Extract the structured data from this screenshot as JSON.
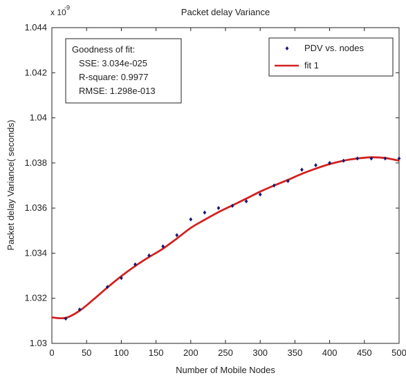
{
  "chart_data": {
    "type": "scatter",
    "title": "Packet delay Variance",
    "xlabel": "Number of Mobile Nodes",
    "ylabel": "Packet delay Variance( seconds)",
    "y_scale_label": "x 10",
    "y_scale_exponent": "-9",
    "xlim": [
      0,
      500
    ],
    "ylim": [
      1.03,
      1.044
    ],
    "x_ticks": [
      0,
      50,
      100,
      150,
      200,
      250,
      300,
      350,
      400,
      450,
      500
    ],
    "y_ticks": [
      1.03,
      1.032,
      1.034,
      1.036,
      1.038,
      1.04,
      1.042,
      1.044
    ],
    "y_tick_labels": [
      "1.03",
      "1.032",
      "1.034",
      "1.036",
      "1.038",
      "1.04",
      "1.042",
      "1.044"
    ],
    "grid": false,
    "legend_position": "top-right",
    "series": [
      {
        "name": "PDV vs. nodes",
        "kind": "scatter",
        "color": "#1a1a6e",
        "x": [
          20,
          40,
          80,
          100,
          120,
          140,
          160,
          180,
          200,
          220,
          240,
          260,
          280,
          300,
          320,
          340,
          360,
          380,
          400,
          420,
          440,
          460,
          480,
          500
        ],
        "y": [
          1.0311,
          1.0315,
          1.0325,
          1.0329,
          1.0335,
          1.0339,
          1.0343,
          1.0348,
          1.0355,
          1.0358,
          1.036,
          1.0361,
          1.0363,
          1.0366,
          1.037,
          1.0372,
          1.0377,
          1.0379,
          1.038,
          1.0381,
          1.0382,
          1.0382,
          1.0382,
          1.0382
        ]
      },
      {
        "name": "fit 1",
        "kind": "line",
        "color": "#d42020",
        "x": [
          0,
          20,
          40,
          60,
          80,
          100,
          120,
          140,
          160,
          180,
          200,
          220,
          240,
          260,
          280,
          300,
          320,
          340,
          360,
          380,
          400,
          420,
          440,
          460,
          480,
          500
        ],
        "y": [
          1.03115,
          1.03113,
          1.03145,
          1.03195,
          1.03248,
          1.03298,
          1.03343,
          1.03383,
          1.0342,
          1.03465,
          1.03512,
          1.03548,
          1.03582,
          1.03612,
          1.03642,
          1.03673,
          1.037,
          1.03725,
          1.03752,
          1.03775,
          1.03795,
          1.0381,
          1.0382,
          1.03825,
          1.03822,
          1.0381
        ]
      }
    ],
    "annotation": {
      "title": "Goodness of fit:",
      "lines": [
        "SSE: 3.034e-025",
        "R-square: 0.9977",
        "RMSE: 1.298e-013"
      ]
    }
  }
}
